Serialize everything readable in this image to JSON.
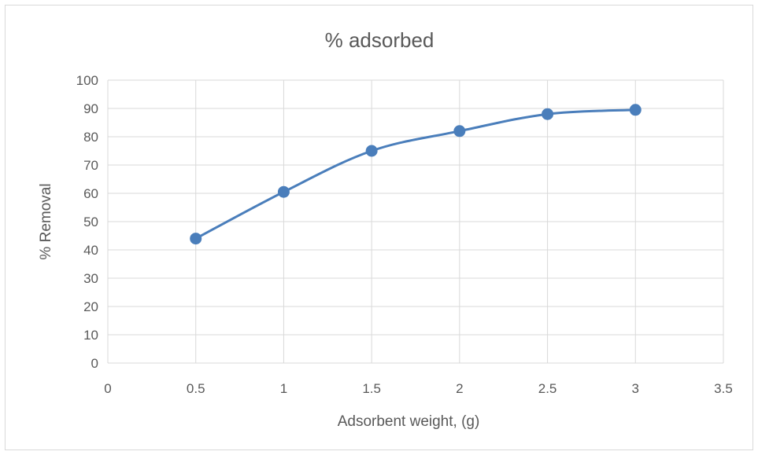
{
  "chart_data": {
    "type": "scatter",
    "title": "% adsorbed",
    "xlabel": "Adsorbent weight, (g)",
    "ylabel": "% Removal",
    "xlim": [
      0,
      3.5
    ],
    "ylim": [
      0,
      100
    ],
    "xticks": [
      0,
      0.5,
      1,
      1.5,
      2,
      2.5,
      3,
      3.5
    ],
    "yticks": [
      0,
      10,
      20,
      30,
      40,
      50,
      60,
      70,
      80,
      90,
      100
    ],
    "grid": true,
    "smooth_line": true,
    "markers": true,
    "series": [
      {
        "color": "#4a7ebb",
        "x": [
          0.5,
          1,
          1.5,
          2,
          2.5,
          3
        ],
        "y": [
          44,
          60.5,
          75,
          82,
          88,
          89.5
        ]
      }
    ]
  }
}
